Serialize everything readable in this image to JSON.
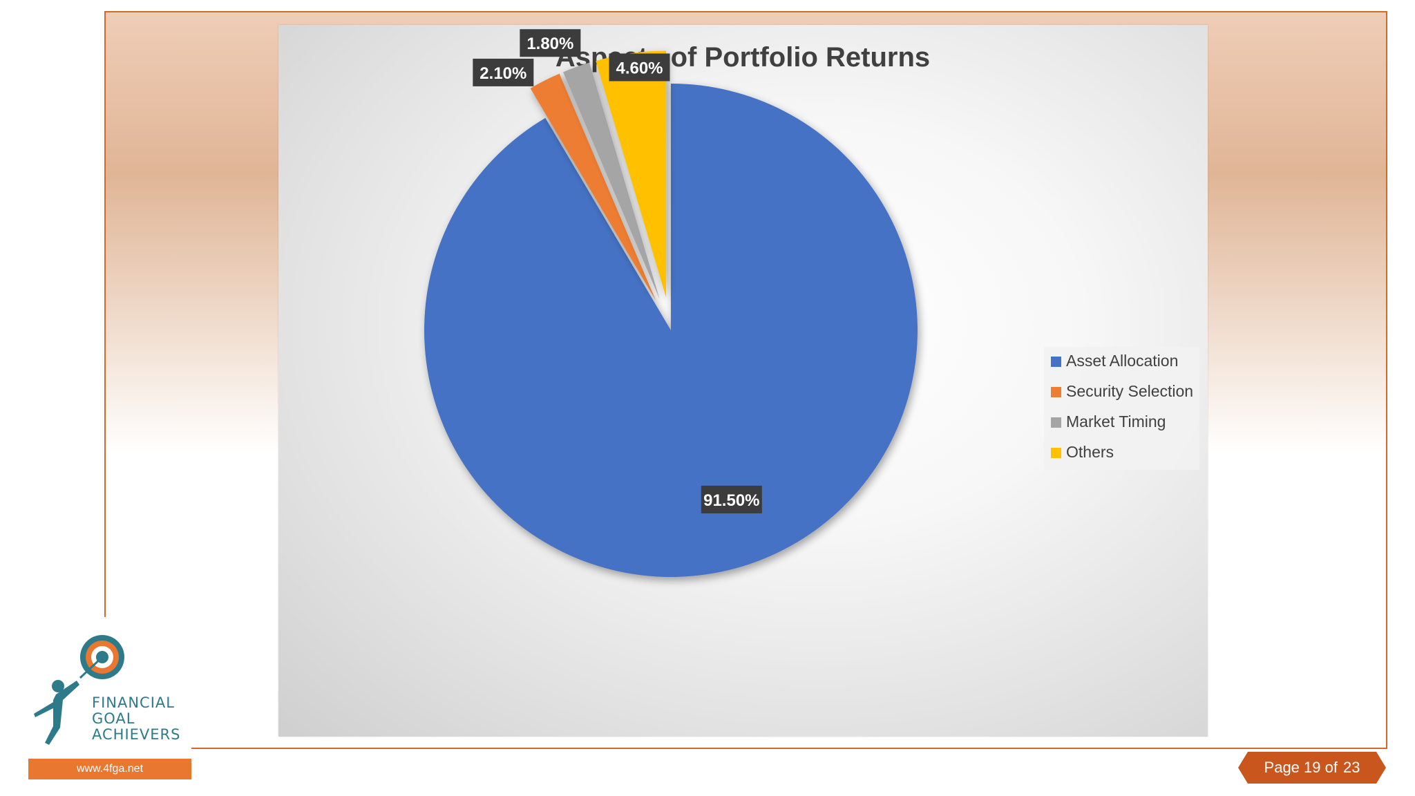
{
  "slide": {
    "logo": {
      "line1": "FINANCIAL",
      "line2": "GOAL",
      "line3": "ACHIEVERS",
      "url": "www.4fga.net"
    },
    "page": {
      "label": "Page 19 of",
      "total": "23"
    }
  },
  "chart_data": {
    "type": "pie",
    "title": "Aspects of Portfolio Returns",
    "categories": [
      "Asset Allocation",
      "Security Selection",
      "Market Timing",
      "Others"
    ],
    "values": [
      91.5,
      2.1,
      1.8,
      4.6
    ],
    "data_labels": [
      "91.50%",
      "2.10%",
      "1.80%",
      "4.60%"
    ],
    "colors": [
      "#4472c4",
      "#ed7d31",
      "#a5a5a5",
      "#ffc000"
    ],
    "legend_position": "right",
    "exploded": [
      false,
      true,
      true,
      true
    ]
  }
}
